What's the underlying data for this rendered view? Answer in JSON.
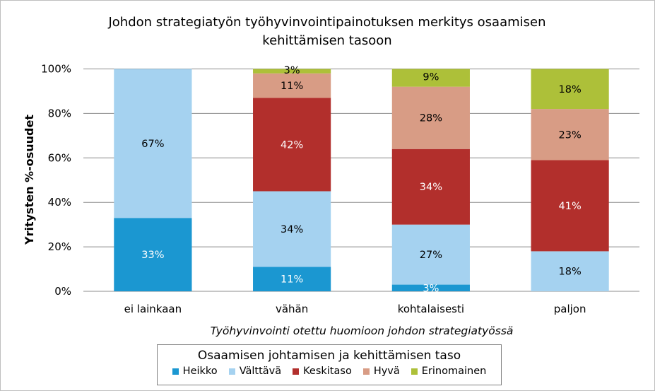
{
  "chart_data": {
    "type": "bar",
    "stacked": true,
    "title": "Johdon strategiatyön työhyvinvointipainotuksen merkitys osaamisen kehittämisen tasoon",
    "title_lines": [
      "Johdon strategiatyön työhyvinvointipainotuksen merkitys osaamisen",
      "kehittämisen tasoon"
    ],
    "xlabel": "Työhyvinvointi otettu huomioon johdon strategiatyössä",
    "ylabel": "Yritysten %-osuudet",
    "ylim": [
      0,
      100
    ],
    "yticks": [
      "0%",
      "20%",
      "40%",
      "60%",
      "80%",
      "100%"
    ],
    "categories": [
      "ei lainkaan",
      "vähän",
      "kohtalaisesti",
      "paljon"
    ],
    "series": [
      {
        "name": "Heikko",
        "color": "#1b97d1",
        "label_color": "#ffffff",
        "values": [
          33,
          11,
          3,
          0
        ],
        "labels": [
          "33%",
          "11%",
          "3%",
          ""
        ]
      },
      {
        "name": "Välttävä",
        "color": "#a5d2f0",
        "label_color": "#000000",
        "values": [
          67,
          34,
          27,
          18
        ],
        "labels": [
          "67%",
          "34%",
          "27%",
          "18%"
        ]
      },
      {
        "name": "Keskitaso",
        "color": "#b22f2c",
        "label_color": "#ffffff",
        "values": [
          0,
          42,
          34,
          41
        ],
        "labels": [
          "",
          "42%",
          "34%",
          "41%"
        ]
      },
      {
        "name": "Hyvä",
        "color": "#d89c85",
        "label_color": "#000000",
        "values": [
          0,
          11,
          28,
          23
        ],
        "labels": [
          "",
          "11%",
          "28%",
          "23%"
        ]
      },
      {
        "name": "Erinomainen",
        "color": "#adc039",
        "label_color": "#000000",
        "values": [
          0,
          3,
          9,
          18
        ],
        "labels": [
          "",
          "3%",
          "9%",
          "18%"
        ]
      }
    ],
    "grid": true,
    "legend_position": "bottom"
  },
  "legend": {
    "title": "Osaamisen johtamisen ja kehittämisen taso"
  }
}
